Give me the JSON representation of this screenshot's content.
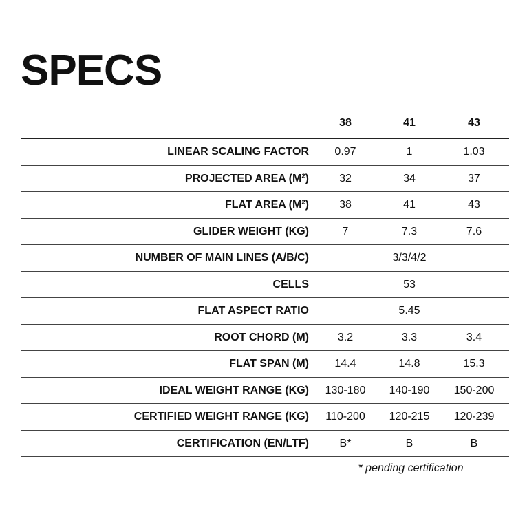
{
  "title": "SPECS",
  "columns": [
    "38",
    "41",
    "43"
  ],
  "rows": [
    {
      "label": "LINEAR SCALING FACTOR",
      "values": [
        "0.97",
        "1",
        "1.03"
      ]
    },
    {
      "label": "PROJECTED AREA (M²)",
      "values": [
        "32",
        "34",
        "37"
      ]
    },
    {
      "label": "FLAT AREA (M²)",
      "values": [
        "38",
        "41",
        "43"
      ]
    },
    {
      "label": "GLIDER WEIGHT (KG)",
      "values": [
        "7",
        "7.3",
        "7.6"
      ]
    },
    {
      "label": "NUMBER OF MAIN LINES (A/B/C)",
      "merged": "3/3/4/2"
    },
    {
      "label": "CELLS",
      "merged": "53"
    },
    {
      "label": "FLAT ASPECT RATIO",
      "merged": "5.45"
    },
    {
      "label": "ROOT CHORD (M)",
      "values": [
        "3.2",
        "3.3",
        "3.4"
      ]
    },
    {
      "label": "FLAT SPAN (M)",
      "values": [
        "14.4",
        "14.8",
        "15.3"
      ]
    },
    {
      "label": "IDEAL WEIGHT RANGE (KG)",
      "values": [
        "130-180",
        "140-190",
        "150-200"
      ]
    },
    {
      "label": "CERTIFIED WEIGHT RANGE (KG)",
      "values": [
        "110-200",
        "120-215",
        "120-239"
      ]
    },
    {
      "label": "CERTIFICATION (EN/LTF)",
      "values": [
        "B*",
        "B",
        "B"
      ]
    }
  ],
  "footnote": "* pending certification"
}
